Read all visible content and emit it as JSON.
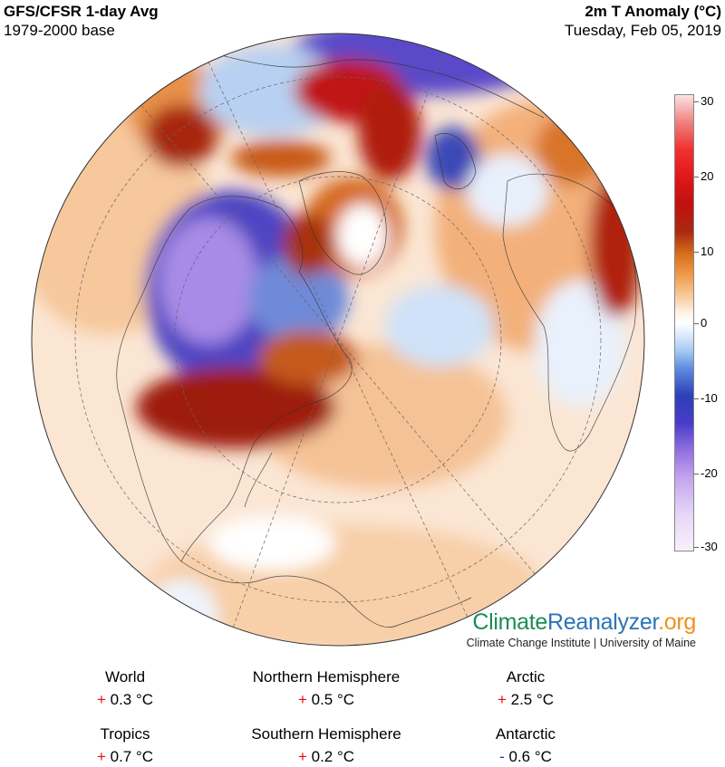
{
  "header": {
    "title_left": "GFS/CFSR 1-day Avg",
    "subtitle_left": "1979-2000 base",
    "title_right": "2m T Anomaly (°C)",
    "subtitle_right": "Tuesday, Feb 05, 2019"
  },
  "colorbar": {
    "ticks": [
      "30",
      "20",
      "10",
      "0",
      "-10",
      "-20",
      "-30"
    ],
    "colors": [
      "#fbe3e3",
      "#f03030",
      "#a82a10",
      "#ffffff",
      "#2b3fb8",
      "#c4a4ef",
      "#f8f0fb"
    ]
  },
  "brand": {
    "part1": "Climate",
    "part2": "Reanalyzer",
    "part3": ".org",
    "credit": "Climate Change Institute | University of Maine"
  },
  "stats": {
    "world": {
      "label": "World",
      "sign": "+",
      "value": "0.3 °C"
    },
    "nh": {
      "label": "Northern Hemisphere",
      "sign": "+",
      "value": "0.5 °C"
    },
    "arctic": {
      "label": "Arctic",
      "sign": "+",
      "value": "2.5 °C"
    },
    "tropics": {
      "label": "Tropics",
      "sign": "+",
      "value": "0.7 °C"
    },
    "sh": {
      "label": "Southern Hemisphere",
      "sign": "+",
      "value": "0.2 °C"
    },
    "antarctic": {
      "label": "Antarctic",
      "sign": "-",
      "value": "0.6 °C"
    }
  }
}
